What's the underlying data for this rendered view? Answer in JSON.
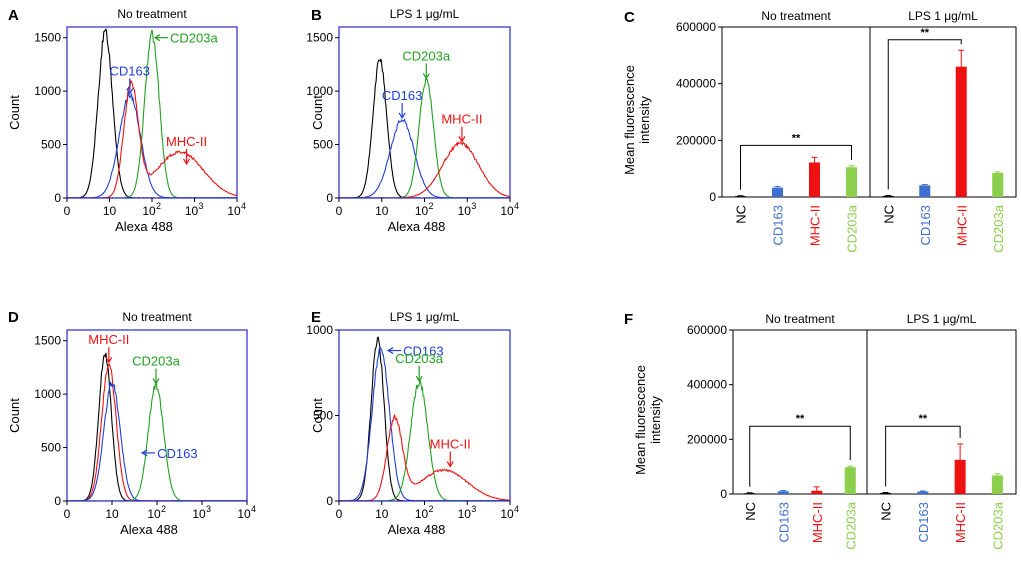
{
  "colors": {
    "NC": "#000000",
    "CD163": "#1f3fd6",
    "MHC-II": "#ee1111",
    "CD203a": "#22a022",
    "CD163_bar": "#3c6fcf",
    "CD203a_bar": "#8ccf4c",
    "frame": "#2a2acc"
  },
  "chart_data": [
    {
      "id": "A",
      "type": "line",
      "panel_label": "A",
      "title": "No treatment",
      "xlabel": "Alexa 488",
      "ylabel": "Count",
      "xscale": "log",
      "xlim": [
        0,
        10000
      ],
      "ylim": [
        0,
        1600
      ],
      "yticks": [
        "0",
        "500",
        "1000",
        "1500"
      ],
      "xticks": [
        "0",
        "10",
        "10",
        "10",
        "10"
      ],
      "xtick_exps": [
        "",
        "",
        "2",
        "3",
        "4"
      ],
      "series": [
        {
          "name": "NC",
          "peak_x": 8,
          "peak_y": 1550,
          "width": 0.17,
          "tail": 0
        },
        {
          "name": "CD163",
          "peak_x": 30,
          "peak_y": 960,
          "width": 0.25,
          "tail": 0
        },
        {
          "name": "CD203a",
          "peak_x": 100,
          "peak_y": 1530,
          "width": 0.17,
          "tail": 0
        },
        {
          "name": "MHC-II",
          "peak_x": 32,
          "peak_y": 1030,
          "width": 0.17,
          "tail": 430
        }
      ],
      "annotations": [
        {
          "label": "CD163",
          "arrow": "↓",
          "at_x": 30,
          "at_y": 960
        },
        {
          "label": "CD203a",
          "arrow": "←",
          "at_x": 100,
          "at_y": 1500
        },
        {
          "label": "MHC-II",
          "arrow": "↓",
          "at_x": 650,
          "at_y": 300
        }
      ]
    },
    {
      "id": "B",
      "type": "line",
      "panel_label": "B",
      "title": "LPS 1 μg/mL",
      "xlabel": "Alexa 488",
      "ylabel": "Count",
      "xscale": "log",
      "xlim": [
        0,
        10000
      ],
      "ylim": [
        0,
        1600
      ],
      "yticks": [
        "0",
        "500",
        "1000",
        "1500"
      ],
      "xticks": [
        "0",
        "10",
        "10",
        "10",
        "10"
      ],
      "xtick_exps": [
        "",
        "",
        "2",
        "3",
        "4"
      ],
      "series": [
        {
          "name": "NC",
          "peak_x": 9,
          "peak_y": 1290,
          "width": 0.16,
          "tail": 0
        },
        {
          "name": "CD163",
          "peak_x": 30,
          "peak_y": 730,
          "width": 0.28,
          "tail": 0
        },
        {
          "name": "CD203a",
          "peak_x": 110,
          "peak_y": 1100,
          "width": 0.17,
          "tail": 0
        },
        {
          "name": "MHC-II",
          "peak_x": 700,
          "peak_y": 510,
          "width": 0.42,
          "tail": 0
        }
      ],
      "annotations": [
        {
          "label": "CD163",
          "arrow": "↓",
          "at_x": 30,
          "at_y": 730
        },
        {
          "label": "CD203a",
          "arrow": "↓",
          "at_x": 110,
          "at_y": 1100
        },
        {
          "label": "MHC-II",
          "arrow": "↓",
          "at_x": 750,
          "at_y": 510
        }
      ]
    },
    {
      "id": "C",
      "type": "bar",
      "panel_label": "C",
      "ylabel": "Mean fluorescence intensity",
      "ylim": [
        0,
        600000
      ],
      "yticks": [
        "0",
        "200000",
        "400000",
        "600000"
      ],
      "groups": [
        {
          "title": "No treatment",
          "categories": [
            "NC",
            "CD163",
            "MHC-II",
            "CD203a"
          ],
          "values": [
            3000,
            33000,
            122000,
            105000
          ],
          "errors": [
            1500,
            4000,
            18000,
            5000
          ]
        },
        {
          "title": "LPS 1 μg/mL",
          "categories": [
            "NC",
            "CD163",
            "MHC-II",
            "CD203a"
          ],
          "values": [
            4000,
            41000,
            460000,
            85000
          ],
          "errors": [
            1500,
            3000,
            58000,
            4000
          ]
        }
      ],
      "significance": [
        {
          "group": 0,
          "from": 0,
          "to": 3,
          "label": "**",
          "y": 182000
        },
        {
          "group": 1,
          "from": 0,
          "to": 2,
          "label": "**",
          "y": 555000
        }
      ]
    },
    {
      "id": "D",
      "type": "line",
      "panel_label": "D",
      "title": "No treatment",
      "xlabel": "Alexa 488",
      "ylabel": "Count",
      "xscale": "log",
      "xlim": [
        0,
        10000
      ],
      "ylim": [
        0,
        1600
      ],
      "yticks": [
        "0",
        "500",
        "1000",
        "1500"
      ],
      "xticks": [
        "0",
        "10",
        "10",
        "10",
        "10"
      ],
      "xtick_exps": [
        "",
        "",
        "2",
        "3",
        "4"
      ],
      "series": [
        {
          "name": "NC",
          "peak_x": 7,
          "peak_y": 1380,
          "width": 0.14,
          "tail": 0
        },
        {
          "name": "MHC-II",
          "peak_x": 8.5,
          "peak_y": 1280,
          "width": 0.16,
          "tail": 0
        },
        {
          "name": "CD163",
          "peak_x": 10,
          "peak_y": 1100,
          "width": 0.18,
          "tail": 0
        },
        {
          "name": "CD203a",
          "peak_x": 95,
          "peak_y": 1080,
          "width": 0.17,
          "tail": 0
        }
      ],
      "annotations": [
        {
          "label": "MHC-II",
          "arrow": "↓",
          "at_x": 8.5,
          "at_y": 1280
        },
        {
          "label": "CD203a",
          "arrow": "↓",
          "at_x": 95,
          "at_y": 1080
        },
        {
          "label": "CD163",
          "arrow": "←",
          "at_x": 40,
          "at_y": 450
        }
      ]
    },
    {
      "id": "E",
      "type": "line",
      "panel_label": "E",
      "title": "LPS 1 μg/mL",
      "xlabel": "Alexa 488",
      "ylabel": "Count",
      "xscale": "log",
      "xlim": [
        0,
        10000
      ],
      "ylim": [
        0,
        1000
      ],
      "yticks": [
        "0",
        "500",
        "1000"
      ],
      "xticks": [
        "0",
        "10",
        "10",
        "10",
        "10"
      ],
      "xtick_exps": [
        "",
        "",
        "2",
        "3",
        "4"
      ],
      "series": [
        {
          "name": "NC",
          "peak_x": 8,
          "peak_y": 950,
          "width": 0.15,
          "tail": 0
        },
        {
          "name": "CD163",
          "peak_x": 9.5,
          "peak_y": 890,
          "width": 0.2,
          "tail": 0
        },
        {
          "name": "CD203a",
          "peak_x": 75,
          "peak_y": 690,
          "width": 0.2,
          "tail": 0
        },
        {
          "name": "MHC-II",
          "peak_x": 20,
          "peak_y": 470,
          "width": 0.18,
          "tail": 180
        }
      ],
      "annotations": [
        {
          "label": "CD163",
          "arrow": "←",
          "at_x": 12,
          "at_y": 880
        },
        {
          "label": "CD203a",
          "arrow": "↓",
          "at_x": 75,
          "at_y": 690
        },
        {
          "label": "MHC-II",
          "arrow": "↓",
          "at_x": 400,
          "at_y": 190
        }
      ]
    },
    {
      "id": "F",
      "type": "bar",
      "panel_label": "F",
      "ylabel": "Mean fluorescence intensity",
      "ylim": [
        0,
        600000
      ],
      "yticks": [
        "0",
        "200000",
        "400000",
        "600000"
      ],
      "groups": [
        {
          "title": "No treatment",
          "categories": [
            "NC",
            "CD163",
            "MHC-II",
            "CD203a"
          ],
          "values": [
            3000,
            10000,
            12000,
            98000
          ],
          "errors": [
            1500,
            2500,
            14000,
            4000
          ]
        },
        {
          "title": "LPS 1 μg/mL",
          "categories": [
            "NC",
            "CD163",
            "MHC-II",
            "CD203a"
          ],
          "values": [
            4000,
            9000,
            125000,
            68000
          ],
          "errors": [
            1500,
            2000,
            58000,
            6000
          ]
        }
      ],
      "significance": [
        {
          "group": 0,
          "from": 0,
          "to": 3,
          "label": "**",
          "y": 248000
        },
        {
          "group": 1,
          "from": 0,
          "to": 2,
          "label": "**",
          "y": 248000
        }
      ]
    }
  ]
}
